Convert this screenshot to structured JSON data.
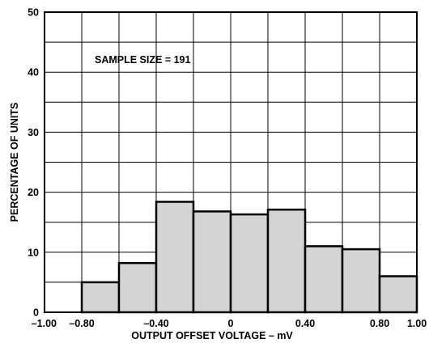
{
  "chart_data": {
    "type": "bar",
    "xlabel": "OUTPUT OFFSET VOLTAGE – mV",
    "ylabel": "PERCENTAGE OF UNITS",
    "annotation": "SAMPLE SIZE = 191",
    "xlim": [
      -1.0,
      1.0
    ],
    "ylim": [
      0,
      50
    ],
    "grid": true,
    "x_ticks": [
      {
        "value": -1.0,
        "label": "–1.00"
      },
      {
        "value": -0.8,
        "label": "–0.80"
      },
      {
        "value": -0.4,
        "label": "–0.40"
      },
      {
        "value": 0.0,
        "label": "0"
      },
      {
        "value": 0.4,
        "label": "0.40"
      },
      {
        "value": 0.8,
        "label": "0.80"
      },
      {
        "value": 1.0,
        "label": "1.00"
      }
    ],
    "y_ticks": [
      {
        "value": 0,
        "label": "0"
      },
      {
        "value": 10,
        "label": "10"
      },
      {
        "value": 20,
        "label": "20"
      },
      {
        "value": 30,
        "label": "30"
      },
      {
        "value": 40,
        "label": "40"
      },
      {
        "value": 50,
        "label": "50"
      }
    ],
    "bins": [
      {
        "start": -1.0,
        "end": -0.8,
        "value": 0
      },
      {
        "start": -0.8,
        "end": -0.6,
        "value": 5.0
      },
      {
        "start": -0.6,
        "end": -0.4,
        "value": 8.2
      },
      {
        "start": -0.4,
        "end": -0.2,
        "value": 18.4
      },
      {
        "start": -0.2,
        "end": 0.0,
        "value": 16.8
      },
      {
        "start": 0.0,
        "end": 0.2,
        "value": 16.3
      },
      {
        "start": 0.2,
        "end": 0.4,
        "value": 17.1
      },
      {
        "start": 0.4,
        "end": 0.6,
        "value": 11.0
      },
      {
        "start": 0.6,
        "end": 0.8,
        "value": 10.5
      },
      {
        "start": 0.8,
        "end": 1.0,
        "value": 6.0
      }
    ],
    "colors": {
      "fill": "#d4d4d4",
      "stroke": "#000000",
      "grid": "#000000"
    }
  }
}
